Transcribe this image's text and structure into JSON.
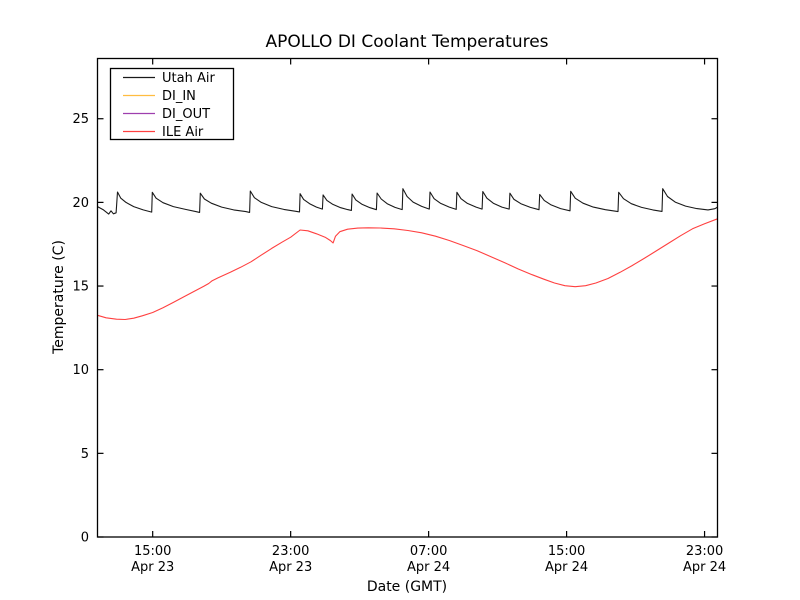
{
  "chart": {
    "title": "APOLLO DI Coolant Temperatures",
    "xlabel": "Date (GMT)",
    "ylabel": "Temperature (C)"
  },
  "chart_data": {
    "type": "line",
    "title": "APOLLO DI Coolant Temperatures",
    "xlabel": "Date (GMT)",
    "ylabel": "Temperature (C)",
    "x_unit": "hours since Apr 23 00:00 GMT",
    "xlim": [
      11.8,
      47.75
    ],
    "ylim": [
      0,
      28.6
    ],
    "grid": false,
    "legend_position": "upper-left",
    "xticks": [
      {
        "pos": 15,
        "time": "15:00",
        "date": "Apr 23"
      },
      {
        "pos": 23,
        "time": "23:00",
        "date": "Apr 23"
      },
      {
        "pos": 31,
        "time": "07:00",
        "date": "Apr 24"
      },
      {
        "pos": 39,
        "time": "15:00",
        "date": "Apr 24"
      },
      {
        "pos": 47,
        "time": "23:00",
        "date": "Apr 24"
      }
    ],
    "yticks": [
      {
        "pos": 0,
        "label": "0"
      },
      {
        "pos": 5,
        "label": "5"
      },
      {
        "pos": 10,
        "label": "10"
      },
      {
        "pos": 15,
        "label": "15"
      },
      {
        "pos": 20,
        "label": "20"
      },
      {
        "pos": 25,
        "label": "25"
      }
    ],
    "series": [
      {
        "name": "Utah Air",
        "color": "#1a1a1a",
        "points": [
          [
            11.8,
            19.75
          ],
          [
            12.15,
            19.55
          ],
          [
            12.45,
            19.3
          ],
          [
            12.58,
            19.5
          ],
          [
            12.72,
            19.32
          ],
          [
            12.88,
            19.38
          ],
          [
            12.96,
            20.62
          ],
          [
            13.15,
            20.25
          ],
          [
            13.45,
            20.0
          ],
          [
            13.9,
            19.75
          ],
          [
            14.45,
            19.55
          ],
          [
            14.94,
            19.42
          ],
          [
            14.98,
            20.6
          ],
          [
            15.2,
            20.25
          ],
          [
            15.6,
            19.98
          ],
          [
            16.2,
            19.75
          ],
          [
            16.9,
            19.58
          ],
          [
            17.5,
            19.45
          ],
          [
            17.72,
            19.4
          ],
          [
            17.76,
            20.55
          ],
          [
            18.0,
            20.2
          ],
          [
            18.4,
            19.95
          ],
          [
            19.0,
            19.72
          ],
          [
            19.7,
            19.55
          ],
          [
            20.4,
            19.45
          ],
          [
            20.62,
            19.4
          ],
          [
            20.66,
            20.68
          ],
          [
            20.9,
            20.28
          ],
          [
            21.3,
            20.0
          ],
          [
            21.9,
            19.75
          ],
          [
            22.6,
            19.58
          ],
          [
            23.3,
            19.47
          ],
          [
            23.51,
            19.43
          ],
          [
            23.55,
            20.52
          ],
          [
            23.75,
            20.18
          ],
          [
            24.1,
            19.92
          ],
          [
            24.5,
            19.72
          ],
          [
            24.84,
            19.6
          ],
          [
            24.88,
            20.45
          ],
          [
            25.1,
            20.12
          ],
          [
            25.45,
            19.88
          ],
          [
            25.9,
            19.68
          ],
          [
            26.3,
            19.57
          ],
          [
            26.52,
            19.52
          ],
          [
            26.56,
            20.5
          ],
          [
            26.78,
            20.15
          ],
          [
            27.15,
            19.88
          ],
          [
            27.6,
            19.68
          ],
          [
            27.97,
            19.56
          ],
          [
            28.01,
            20.56
          ],
          [
            28.25,
            20.2
          ],
          [
            28.6,
            19.92
          ],
          [
            29.05,
            19.7
          ],
          [
            29.47,
            19.57
          ],
          [
            29.51,
            20.82
          ],
          [
            29.75,
            20.35
          ],
          [
            30.1,
            20.02
          ],
          [
            30.6,
            19.76
          ],
          [
            31.04,
            19.6
          ],
          [
            31.08,
            20.62
          ],
          [
            31.32,
            20.22
          ],
          [
            31.7,
            19.94
          ],
          [
            32.2,
            19.72
          ],
          [
            32.6,
            19.58
          ],
          [
            32.64,
            20.6
          ],
          [
            32.88,
            20.22
          ],
          [
            33.25,
            19.94
          ],
          [
            33.75,
            19.72
          ],
          [
            34.1,
            19.6
          ],
          [
            34.14,
            20.65
          ],
          [
            34.38,
            20.25
          ],
          [
            34.75,
            19.95
          ],
          [
            35.25,
            19.72
          ],
          [
            35.67,
            19.6
          ],
          [
            35.71,
            20.55
          ],
          [
            35.95,
            20.18
          ],
          [
            36.35,
            19.92
          ],
          [
            36.9,
            19.7
          ],
          [
            37.4,
            19.56
          ],
          [
            37.44,
            20.48
          ],
          [
            37.7,
            20.12
          ],
          [
            38.1,
            19.85
          ],
          [
            38.65,
            19.63
          ],
          [
            39.2,
            19.5
          ],
          [
            39.24,
            20.66
          ],
          [
            39.5,
            20.25
          ],
          [
            39.95,
            19.95
          ],
          [
            40.55,
            19.72
          ],
          [
            41.25,
            19.56
          ],
          [
            41.98,
            19.45
          ],
          [
            42.02,
            20.6
          ],
          [
            42.3,
            20.22
          ],
          [
            42.75,
            19.92
          ],
          [
            43.35,
            19.7
          ],
          [
            44.0,
            19.55
          ],
          [
            44.53,
            19.46
          ],
          [
            44.57,
            20.82
          ],
          [
            44.85,
            20.35
          ],
          [
            45.3,
            20.02
          ],
          [
            45.9,
            19.78
          ],
          [
            46.55,
            19.63
          ],
          [
            47.2,
            19.55
          ],
          [
            47.6,
            19.62
          ],
          [
            47.75,
            19.72
          ]
        ]
      },
      {
        "name": "DI_IN",
        "color": "#ffbd40",
        "points": []
      },
      {
        "name": "DI_OUT",
        "color": "#9e3fae",
        "points": []
      },
      {
        "name": "ILE Air",
        "color": "#ff4040",
        "points": [
          [
            11.8,
            13.25
          ],
          [
            12.3,
            13.1
          ],
          [
            12.9,
            13.02
          ],
          [
            13.4,
            13.0
          ],
          [
            13.9,
            13.08
          ],
          [
            14.4,
            13.22
          ],
          [
            15.0,
            13.42
          ],
          [
            15.6,
            13.7
          ],
          [
            16.2,
            14.02
          ],
          [
            16.8,
            14.35
          ],
          [
            17.4,
            14.68
          ],
          [
            17.95,
            14.98
          ],
          [
            18.25,
            15.15
          ],
          [
            18.45,
            15.32
          ],
          [
            18.8,
            15.5
          ],
          [
            19.5,
            15.82
          ],
          [
            20.1,
            16.12
          ],
          [
            20.7,
            16.45
          ],
          [
            21.3,
            16.85
          ],
          [
            21.9,
            17.25
          ],
          [
            22.5,
            17.62
          ],
          [
            23.0,
            17.92
          ],
          [
            23.55,
            18.35
          ],
          [
            24.0,
            18.3
          ],
          [
            24.5,
            18.12
          ],
          [
            25.0,
            17.92
          ],
          [
            25.3,
            17.72
          ],
          [
            25.46,
            17.58
          ],
          [
            25.6,
            17.98
          ],
          [
            25.85,
            18.25
          ],
          [
            26.3,
            18.4
          ],
          [
            26.9,
            18.46
          ],
          [
            27.5,
            18.48
          ],
          [
            28.2,
            18.47
          ],
          [
            29.0,
            18.42
          ],
          [
            29.8,
            18.32
          ],
          [
            30.6,
            18.18
          ],
          [
            31.4,
            17.98
          ],
          [
            32.2,
            17.72
          ],
          [
            33.0,
            17.42
          ],
          [
            33.8,
            17.12
          ],
          [
            34.6,
            16.76
          ],
          [
            35.4,
            16.4
          ],
          [
            36.2,
            16.02
          ],
          [
            37.0,
            15.68
          ],
          [
            37.7,
            15.4
          ],
          [
            38.3,
            15.18
          ],
          [
            38.9,
            15.02
          ],
          [
            39.5,
            14.96
          ],
          [
            40.1,
            15.02
          ],
          [
            40.7,
            15.18
          ],
          [
            41.4,
            15.45
          ],
          [
            42.1,
            15.82
          ],
          [
            42.8,
            16.22
          ],
          [
            43.5,
            16.65
          ],
          [
            44.2,
            17.1
          ],
          [
            44.9,
            17.55
          ],
          [
            45.6,
            18.0
          ],
          [
            46.3,
            18.42
          ],
          [
            47.0,
            18.72
          ],
          [
            47.75,
            19.02
          ]
        ]
      }
    ]
  }
}
